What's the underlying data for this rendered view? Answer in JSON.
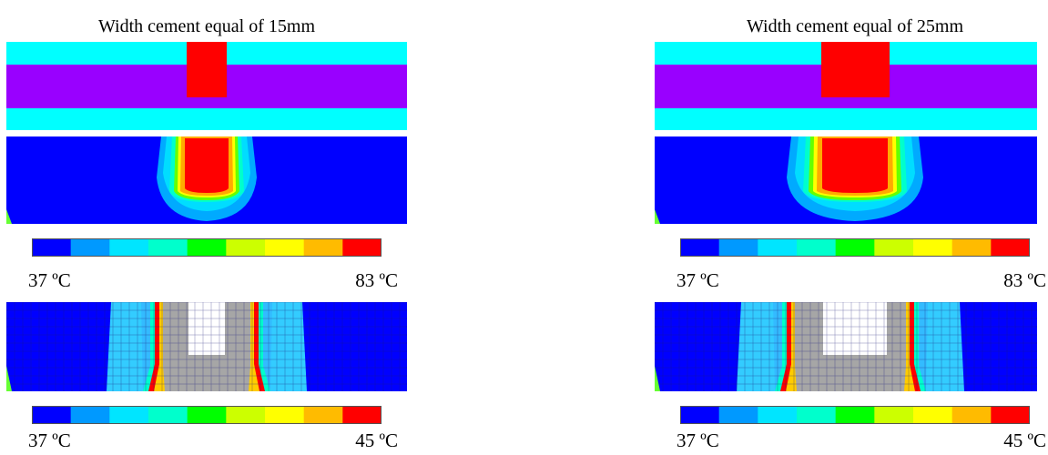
{
  "panels": [
    {
      "title": "Width cement equal of 15mm",
      "scale1": {
        "min_label": "37 ºC",
        "max_label": "83 ºC"
      },
      "scale2": {
        "min_label": "37 ºC",
        "max_label": "45 ºC"
      }
    },
    {
      "title": "Width cement equal of 25mm",
      "scale1": {
        "min_label": "37 ºC",
        "max_label": "83 ºC"
      },
      "scale2": {
        "min_label": "37 ºC",
        "max_label": "45 ºC"
      }
    }
  ],
  "colors": {
    "cyan_layer": "#00ffff",
    "bone_purple": "#9900ff",
    "cement_red": "#ff0000",
    "cold_blue": "#0000ff",
    "cement_grey": "#a6a6a6",
    "scale": [
      "#0000ff",
      "#0099ff",
      "#00e5ff",
      "#00ffcc",
      "#00ff00",
      "#ccff00",
      "#ffff00",
      "#ffbb00",
      "#ff0000"
    ]
  }
}
